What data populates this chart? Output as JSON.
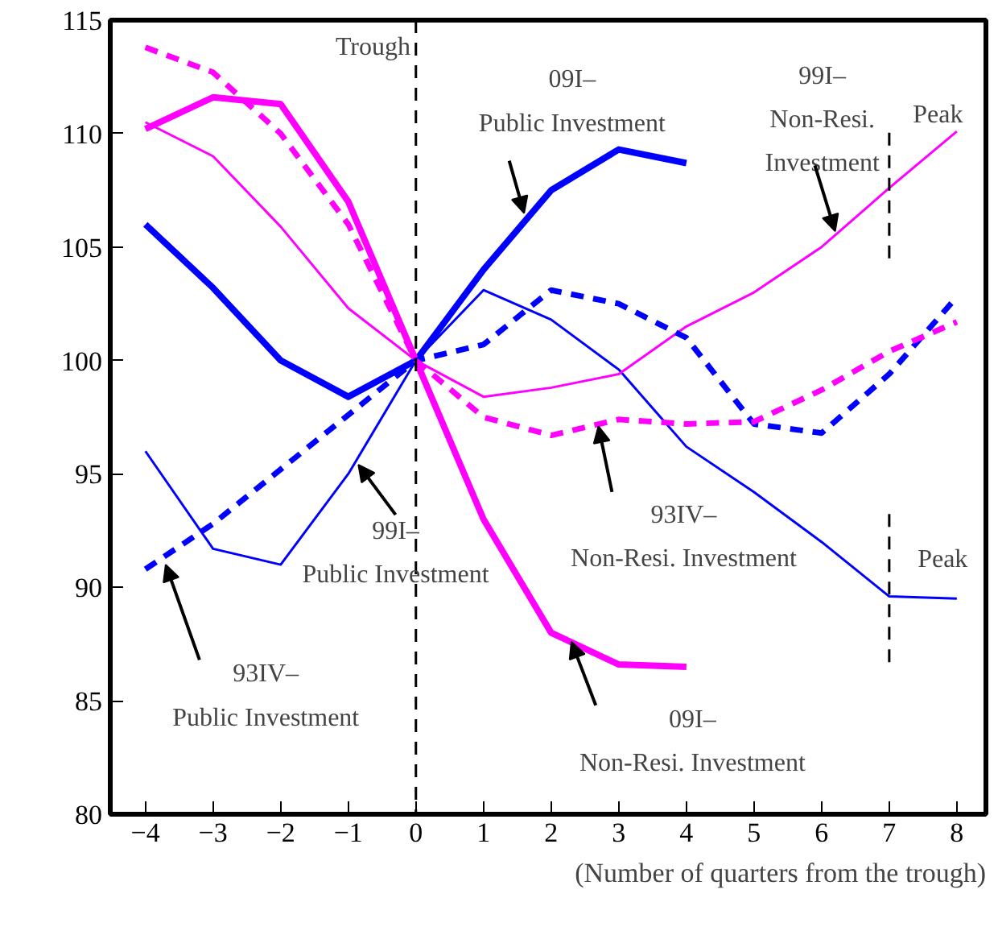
{
  "chart_data": {
    "type": "line",
    "xlabel": "(Number of quarters from the trough)",
    "xlim": [
      -4.52,
      8.43
    ],
    "ylim": [
      80,
      115
    ],
    "xticks": [
      -4,
      -3,
      -2,
      -1,
      0,
      1,
      2,
      3,
      4,
      5,
      6,
      7,
      8
    ],
    "yticks": [
      80,
      85,
      90,
      95,
      100,
      105,
      110,
      115
    ],
    "grid": false,
    "series": [
      {
        "color": "#0000ff",
        "line_style": "solid",
        "x": [
          -4,
          -3,
          -2,
          -1,
          0,
          1,
          2,
          3,
          4
        ],
        "values": [
          106,
          103.2,
          100,
          98.4,
          100,
          104,
          107.5,
          109.3,
          108.7
        ]
      },
      {
        "color": "#ff00ff",
        "line_style": "solid",
        "x": [
          -4,
          -3,
          -2,
          -1,
          0,
          1,
          2,
          3,
          4
        ],
        "values": [
          110.2,
          111.6,
          111.3,
          107,
          100,
          93,
          88,
          86.6,
          86.5
        ]
      },
      {
        "color": "#0000ff",
        "line_style": "solid",
        "x": [
          -4,
          -3,
          -2,
          -1,
          0,
          1,
          2,
          3,
          4,
          5,
          6,
          7,
          8
        ],
        "values": [
          96,
          91.7,
          91,
          95,
          100,
          103.1,
          101.8,
          99.6,
          96.2,
          94.2,
          92,
          89.6,
          89.5
        ]
      },
      {
        "color": "#ff00ff",
        "line_style": "solid",
        "x": [
          -4,
          -3,
          -2,
          -1,
          0,
          1,
          2,
          3,
          4,
          5,
          6,
          7,
          8
        ],
        "values": [
          110.5,
          109,
          105.9,
          102.3,
          100,
          98.4,
          98.8,
          99.4,
          101.5,
          103,
          105,
          107.6,
          110.1
        ]
      },
      {
        "color": "#0000ff",
        "line_style": "dashed",
        "x": [
          -4,
          -3,
          -2,
          -1,
          0,
          1,
          2,
          3,
          4,
          5,
          6,
          7,
          8
        ],
        "values": [
          90.8,
          92.8,
          95.2,
          97.6,
          100,
          100.7,
          103.1,
          102.5,
          101,
          97.2,
          96.8,
          99.4,
          102.8
        ]
      },
      {
        "color": "#ff00ff",
        "line_style": "dashed",
        "x": [
          -4,
          -3,
          -2,
          -1,
          0,
          1,
          2,
          3,
          4,
          5,
          6,
          7,
          8
        ],
        "values": [
          113.8,
          112.7,
          110,
          106,
          100,
          97.5,
          96.7,
          97.4,
          97.2,
          97.3,
          98.7,
          100.4,
          101.7
        ]
      },
      {
        "color": "#000000",
        "line_style": "dashed",
        "x": [
          7,
          7
        ],
        "values": [
          104.5,
          110.1
        ]
      },
      {
        "color": "#000000",
        "line_style": "dashed",
        "x": [
          7,
          7
        ],
        "values": [
          86.7,
          93.3
        ]
      }
    ],
    "ref_lines": [
      {
        "axis": "x",
        "value": 0,
        "label": "Trough",
        "color": "#000000",
        "line_style": "dashed"
      }
    ],
    "annotations": [
      {
        "text": "09I–\nPublic Investment",
        "x": 1.6,
        "y": 106.5
      },
      {
        "text": "99I–\nNon-Resi.\nInvestment",
        "x": 6.2,
        "y": 105.7
      },
      {
        "text": "93IV–\nNon-Resi. Investment",
        "x": 2.7,
        "y": 97.1
      },
      {
        "text": "09I–\nNon-Resi. Investment",
        "x": 2.3,
        "y": 87.6
      },
      {
        "text": "99I–\nPublic Investment",
        "x": -0.85,
        "y": 95.4
      },
      {
        "text": "93IV–\nPublic Investment",
        "x": -3.7,
        "y": 91.0
      },
      {
        "text": "Peak",
        "x": 7,
        "y": 110.1
      },
      {
        "text": "Peak",
        "x": 7,
        "y": 93.3
      }
    ]
  }
}
